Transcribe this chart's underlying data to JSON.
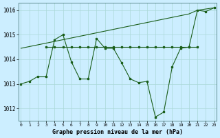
{
  "title": "Graphe pression niveau de la mer (hPa)",
  "background_color": "#cceeff",
  "line_color": "#1a5e1a",
  "ylim": [
    1011.5,
    1016.3
  ],
  "yticks": [
    1012,
    1013,
    1014,
    1015,
    1016
  ],
  "xlim": [
    -0.3,
    23.3
  ],
  "xticks": [
    0,
    1,
    2,
    3,
    4,
    5,
    6,
    7,
    8,
    9,
    10,
    11,
    12,
    13,
    14,
    15,
    16,
    17,
    18,
    19,
    20,
    21,
    22,
    23
  ],
  "line_rise_x": [
    0,
    1,
    2,
    3,
    4,
    5,
    6,
    7,
    8,
    9,
    10,
    11,
    12,
    13,
    14,
    15,
    16,
    17,
    18,
    19,
    20,
    21,
    22,
    23
  ],
  "line_rise_y": [
    1014.45,
    1014.52,
    1014.59,
    1014.66,
    1014.73,
    1014.8,
    1014.87,
    1014.94,
    1015.01,
    1015.08,
    1015.15,
    1015.22,
    1015.29,
    1015.36,
    1015.43,
    1015.5,
    1015.57,
    1015.64,
    1015.71,
    1015.78,
    1015.85,
    1016.0,
    1016.05,
    1016.1
  ],
  "line_flat_x": [
    3,
    4,
    5,
    6,
    7,
    8,
    9,
    10,
    11,
    12,
    13,
    14,
    15,
    16,
    17,
    18,
    19,
    20,
    21
  ],
  "line_flat_y": [
    1014.5,
    1014.5,
    1014.5,
    1014.5,
    1014.5,
    1014.5,
    1014.5,
    1014.5,
    1014.5,
    1014.5,
    1014.5,
    1014.5,
    1014.5,
    1014.5,
    1014.5,
    1014.5,
    1014.5,
    1014.5,
    1014.5
  ],
  "line_zigzag_x": [
    0,
    1,
    2,
    3,
    4,
    5,
    6,
    7,
    8,
    9,
    10,
    11,
    12,
    13,
    14,
    15,
    16,
    17,
    18,
    19,
    20,
    21,
    22,
    23
  ],
  "line_zigzag_y": [
    1013.0,
    1013.1,
    1013.3,
    1013.3,
    1014.8,
    1015.0,
    1013.9,
    1013.2,
    1013.2,
    1014.85,
    1014.45,
    1014.45,
    1013.85,
    1013.2,
    1013.05,
    1013.1,
    1011.65,
    1011.85,
    1013.7,
    1014.45,
    1014.5,
    1016.0,
    1015.95,
    1016.1
  ]
}
